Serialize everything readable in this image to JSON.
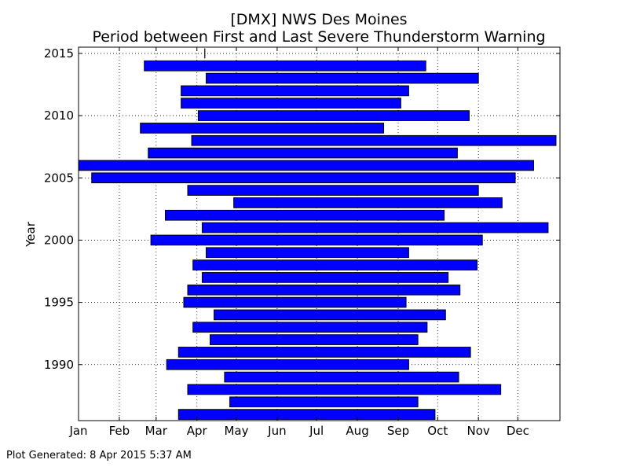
{
  "chart_data": {
    "type": "bar",
    "orientation": "horizontal",
    "title": "[DMX] NWS Des Moines",
    "subtitle": "Period between First and Last Severe Thunderstorm Warning",
    "xlabel": "",
    "ylabel": "Year",
    "x_unit": "day of year",
    "xlim": [
      1,
      367
    ],
    "ylim": [
      1985.5,
      2015.5
    ],
    "x_tick_labels": [
      "Jan",
      "Feb",
      "Mar",
      "Apr",
      "May",
      "Jun",
      "Jul",
      "Aug",
      "Sep",
      "Oct",
      "Nov",
      "Dec"
    ],
    "x_tick_values": [
      1,
      32,
      60,
      91,
      121,
      152,
      182,
      213,
      244,
      274,
      305,
      335
    ],
    "y_tick_values": [
      1990,
      1995,
      2000,
      2005,
      2010,
      2015
    ],
    "grid": true,
    "bar_color": "#0000ff",
    "marker_2015_day": 97,
    "bars": [
      {
        "year": 1986,
        "start": 77,
        "end": 272
      },
      {
        "year": 1987,
        "start": 116,
        "end": 259
      },
      {
        "year": 1988,
        "start": 84,
        "end": 322
      },
      {
        "year": 1989,
        "start": 112,
        "end": 290
      },
      {
        "year": 1990,
        "start": 68,
        "end": 252
      },
      {
        "year": 1991,
        "start": 77,
        "end": 299
      },
      {
        "year": 1992,
        "start": 101,
        "end": 259
      },
      {
        "year": 1993,
        "start": 88,
        "end": 266
      },
      {
        "year": 1994,
        "start": 104,
        "end": 280
      },
      {
        "year": 1995,
        "start": 81,
        "end": 250
      },
      {
        "year": 1996,
        "start": 84,
        "end": 291
      },
      {
        "year": 1997,
        "start": 95,
        "end": 282
      },
      {
        "year": 1998,
        "start": 88,
        "end": 304
      },
      {
        "year": 1999,
        "start": 98,
        "end": 252
      },
      {
        "year": 2000,
        "start": 56,
        "end": 308
      },
      {
        "year": 2001,
        "start": 95,
        "end": 358
      },
      {
        "year": 2002,
        "start": 67,
        "end": 279
      },
      {
        "year": 2003,
        "start": 119,
        "end": 323
      },
      {
        "year": 2004,
        "start": 84,
        "end": 305
      },
      {
        "year": 2005,
        "start": 11,
        "end": 333
      },
      {
        "year": 2006,
        "start": 1,
        "end": 347
      },
      {
        "year": 2007,
        "start": 54,
        "end": 289
      },
      {
        "year": 2008,
        "start": 87,
        "end": 364
      },
      {
        "year": 2009,
        "start": 48,
        "end": 233
      },
      {
        "year": 2010,
        "start": 92,
        "end": 298
      },
      {
        "year": 2011,
        "start": 79,
        "end": 246
      },
      {
        "year": 2012,
        "start": 79,
        "end": 252
      },
      {
        "year": 2013,
        "start": 98,
        "end": 305
      },
      {
        "year": 2014,
        "start": 51,
        "end": 265
      }
    ]
  },
  "footer": {
    "generated": "Plot Generated: 8 Apr 2015 5:37 AM"
  }
}
